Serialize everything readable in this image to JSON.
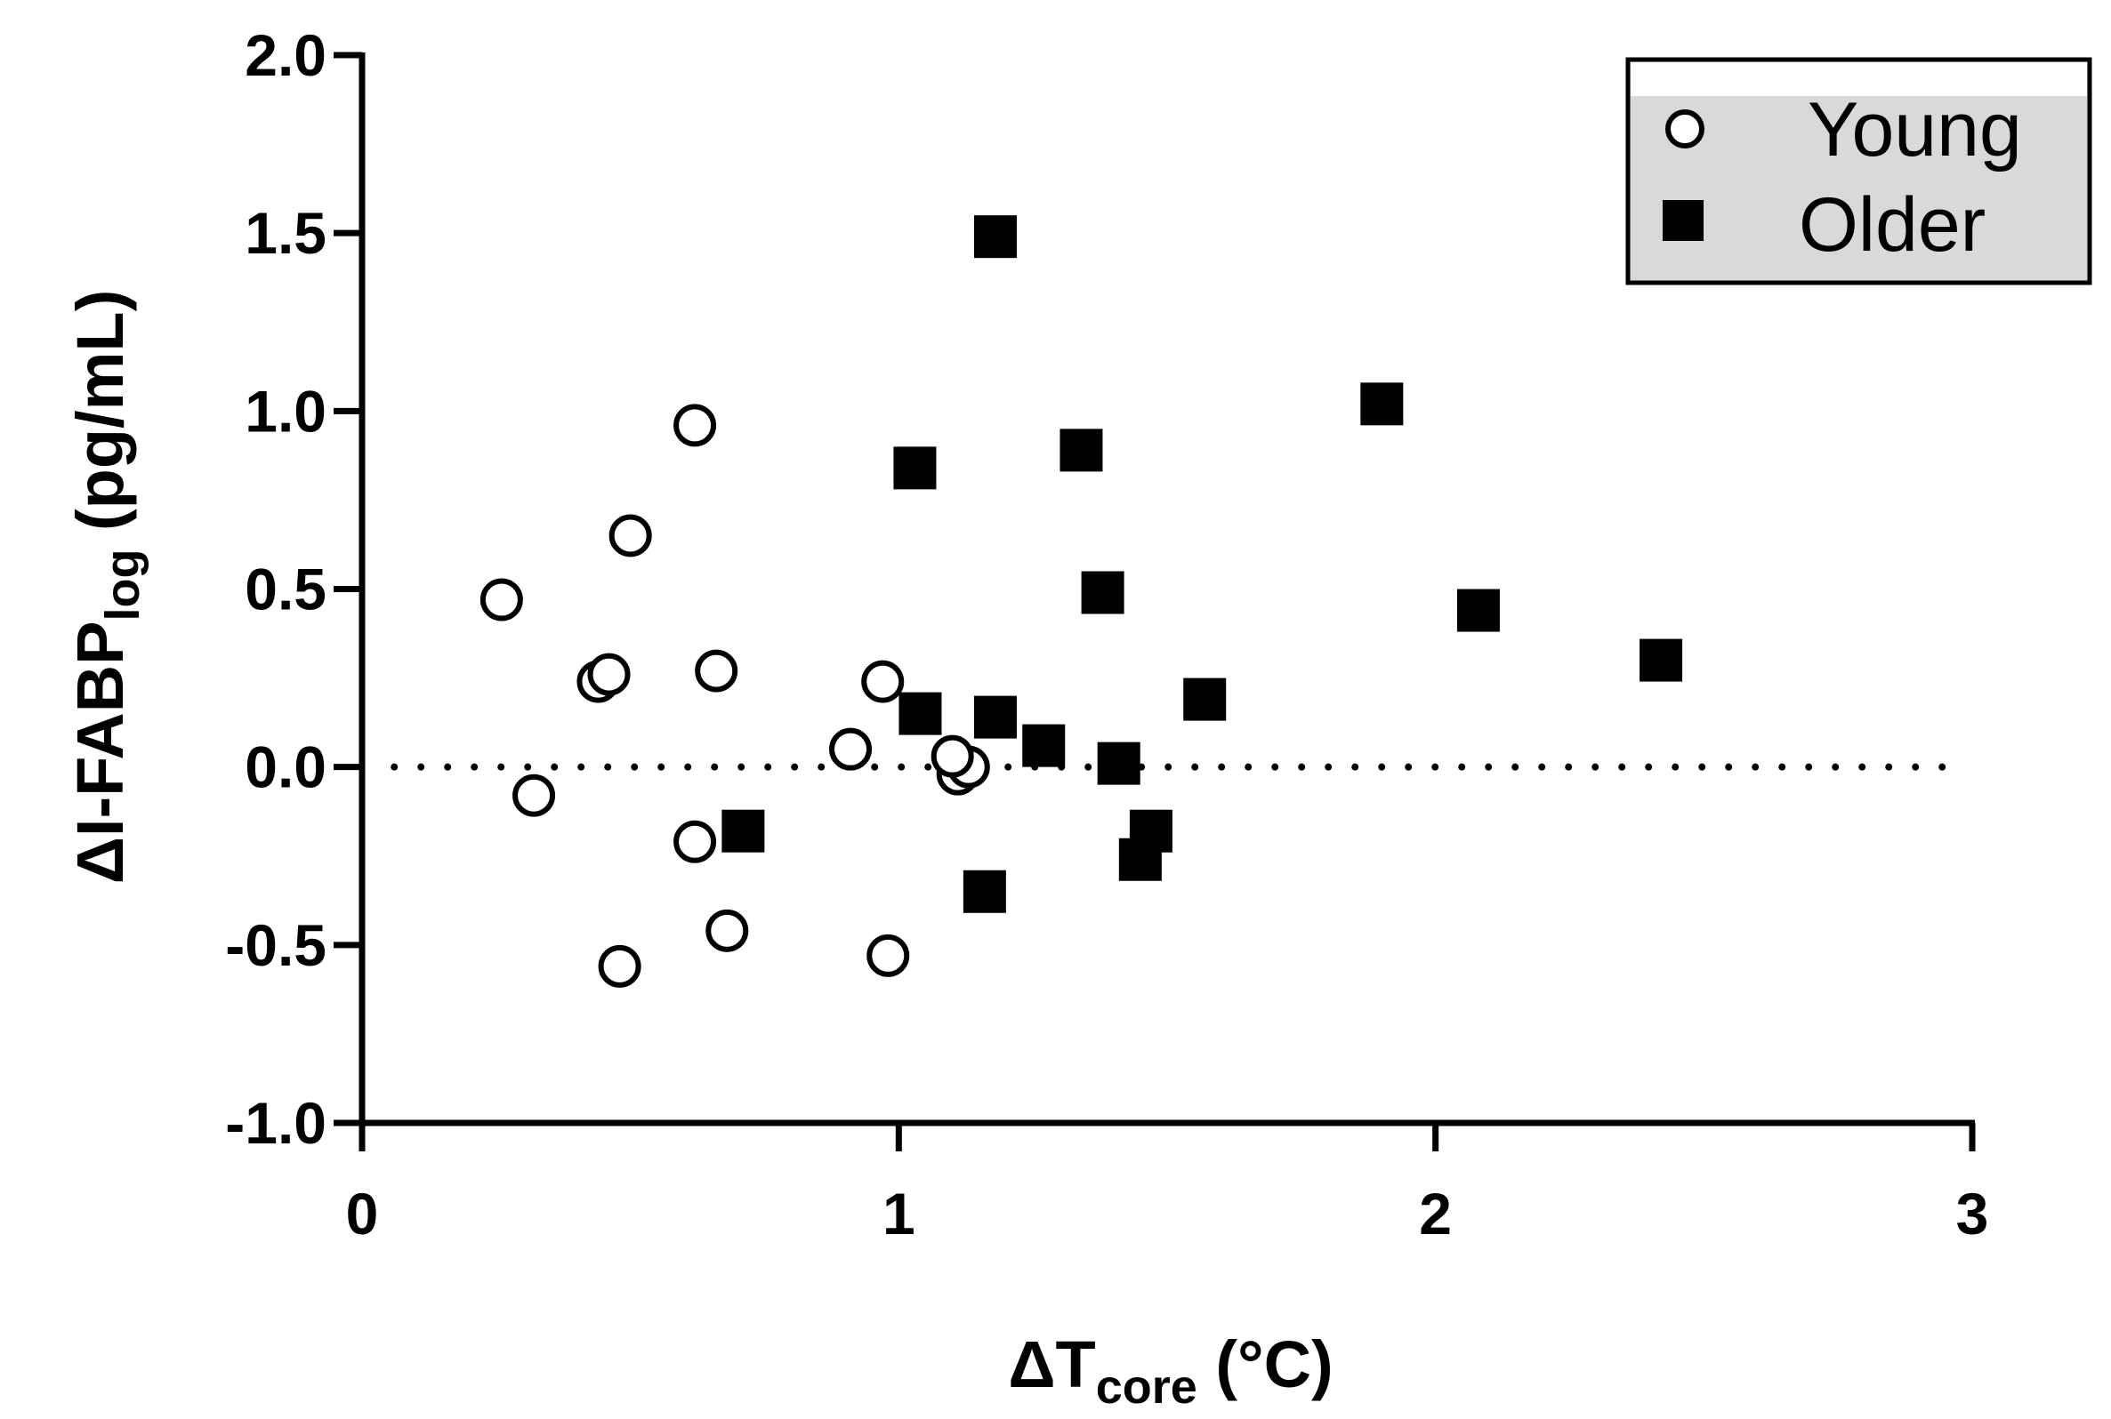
{
  "chart_data": {
    "type": "scatter",
    "title": "",
    "xlabel": {
      "main": "ΔT",
      "sub": "core",
      "tail": " (°C)"
    },
    "ylabel": {
      "main": "ΔI-FABP",
      "sub": "log",
      "tail": " (pg/mL)"
    },
    "xlim": [
      0,
      3
    ],
    "ylim": [
      -1.0,
      2.0
    ],
    "x_ticks": [
      {
        "value": 0,
        "label": "0"
      },
      {
        "value": 1,
        "label": "1"
      },
      {
        "value": 2,
        "label": "2"
      },
      {
        "value": 3,
        "label": "3"
      }
    ],
    "y_ticks": [
      {
        "value": -1.0,
        "label": "-1.0"
      },
      {
        "value": -0.5,
        "label": "-0.5"
      },
      {
        "value": 0.0,
        "label": "0.0"
      },
      {
        "value": 0.5,
        "label": "0.5"
      },
      {
        "value": 1.0,
        "label": "1.0"
      },
      {
        "value": 1.5,
        "label": "1.5"
      },
      {
        "value": 2.0,
        "label": "2.0"
      }
    ],
    "reference_line": {
      "y": 0.0,
      "style": "dotted"
    },
    "grid": false,
    "legend_position": "top-right",
    "series": [
      {
        "name": "Young",
        "marker": "open-circle",
        "points": [
          {
            "x": 0.26,
            "y": 0.47
          },
          {
            "x": 0.32,
            "y": -0.08
          },
          {
            "x": 0.44,
            "y": 0.24
          },
          {
            "x": 0.46,
            "y": 0.26
          },
          {
            "x": 0.48,
            "y": -0.56
          },
          {
            "x": 0.5,
            "y": 0.65
          },
          {
            "x": 0.62,
            "y": 0.96
          },
          {
            "x": 0.62,
            "y": -0.21
          },
          {
            "x": 0.66,
            "y": 0.27
          },
          {
            "x": 0.68,
            "y": -0.46
          },
          {
            "x": 0.91,
            "y": 0.05
          },
          {
            "x": 0.97,
            "y": 0.24
          },
          {
            "x": 0.98,
            "y": -0.53
          },
          {
            "x": 1.11,
            "y": -0.02
          },
          {
            "x": 1.13,
            "y": 0.0
          },
          {
            "x": 1.1,
            "y": 0.03
          }
        ]
      },
      {
        "name": "Older",
        "marker": "filled-square",
        "points": [
          {
            "x": 0.71,
            "y": -0.18
          },
          {
            "x": 1.03,
            "y": 0.84
          },
          {
            "x": 1.04,
            "y": 0.15
          },
          {
            "x": 1.16,
            "y": -0.35
          },
          {
            "x": 1.18,
            "y": 1.49
          },
          {
            "x": 1.18,
            "y": 0.14
          },
          {
            "x": 1.27,
            "y": 0.06
          },
          {
            "x": 1.34,
            "y": 0.89
          },
          {
            "x": 1.38,
            "y": 0.49
          },
          {
            "x": 1.41,
            "y": 0.01
          },
          {
            "x": 1.45,
            "y": -0.26
          },
          {
            "x": 1.47,
            "y": -0.18
          },
          {
            "x": 1.57,
            "y": 0.19
          },
          {
            "x": 1.9,
            "y": 1.02
          },
          {
            "x": 2.08,
            "y": 0.44
          },
          {
            "x": 2.42,
            "y": 0.3
          }
        ]
      }
    ]
  },
  "colors": {
    "axis": "#000000",
    "marker": "#000000",
    "legend_background": "#d9d9d9"
  }
}
